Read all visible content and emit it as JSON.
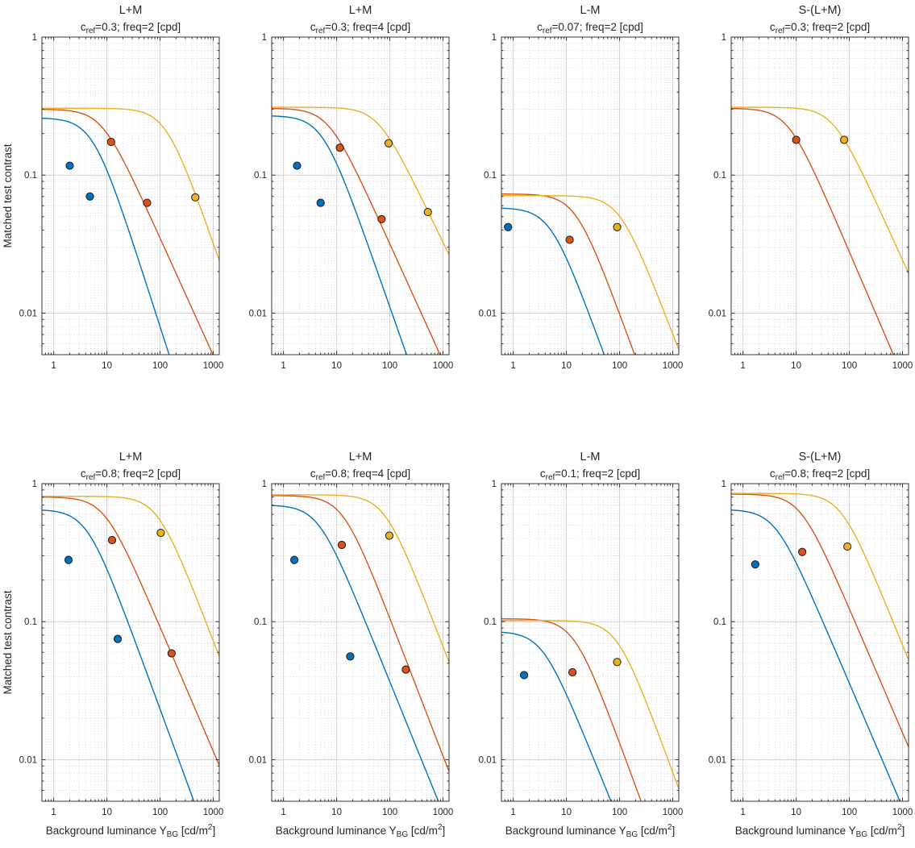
{
  "figure": {
    "background": "#ffffff",
    "ylabel": "Matched test contrast",
    "xlabel": {
      "pre": "Background luminance Y",
      "sub": "BG",
      "mid": " [cd/m",
      "sup": "2",
      "post": "]"
    },
    "x_tick_labels": [
      "1",
      "10",
      "100",
      "1000"
    ],
    "y_tick_labels": [
      "1",
      "0.1",
      "0.01"
    ],
    "x_ticks": [
      1,
      10,
      100,
      1000
    ],
    "y_ticks": [
      1,
      0.1,
      0.01
    ],
    "xlim": [
      0.6,
      1300
    ],
    "ylim": [
      0.005,
      1
    ],
    "grid": "on",
    "minor_grid": "dotted",
    "colors": {
      "blue": "#0072BD",
      "orange": "#D95319",
      "yellow": "#EDB120",
      "marker_edge": "#1a1a1a",
      "axis": "#333333",
      "grid_major": "#d2d2d2",
      "grid_minor": "#d6d6d6",
      "text": "#262626"
    }
  },
  "chart_data": [
    {
      "type": "line+scatter",
      "row": 0,
      "col": 0,
      "title": "L+M",
      "subtitle": {
        "c": "c",
        "sub": "ref",
        "rest": "=0.3; freq=2 [cpd]"
      },
      "series": [
        {
          "name": "blue",
          "color": "blue",
          "curve": {
            "c0": 0.26,
            "x0": 5.5,
            "slope": 1.2
          },
          "points": [
            [
              2.0,
              0.117
            ],
            [
              4.8,
              0.07
            ]
          ]
        },
        {
          "name": "orange",
          "color": "orange",
          "curve": {
            "c0": 0.3,
            "x0": 8,
            "slope": 0.85
          },
          "points": [
            [
              12,
              0.174
            ],
            [
              57,
              0.063
            ]
          ]
        },
        {
          "name": "yellow",
          "color": "yellow",
          "curve": {
            "c0": 0.305,
            "x0": 130,
            "slope": 1.1
          },
          "points": [
            [
              460,
              0.069
            ]
          ]
        }
      ]
    },
    {
      "type": "line+scatter",
      "row": 0,
      "col": 1,
      "title": "L+M",
      "subtitle": {
        "c": "c",
        "sub": "ref",
        "rest": "=0.3; freq=4 [cpd]"
      },
      "series": [
        {
          "name": "blue",
          "color": "blue",
          "curve": {
            "c0": 0.27,
            "x0": 5.5,
            "slope": 1.1
          },
          "points": [
            [
              1.8,
              0.117
            ],
            [
              5.0,
              0.063
            ]
          ]
        },
        {
          "name": "orange",
          "color": "orange",
          "curve": {
            "c0": 0.305,
            "x0": 7,
            "slope": 0.85
          },
          "points": [
            [
              11.5,
              0.158
            ],
            [
              70,
              0.048
            ]
          ]
        },
        {
          "name": "yellow",
          "color": "yellow",
          "curve": {
            "c0": 0.31,
            "x0": 60,
            "slope": 0.8
          },
          "points": [
            [
              95,
              0.17
            ],
            [
              520,
              0.054
            ]
          ]
        }
      ]
    },
    {
      "type": "line+scatter",
      "row": 0,
      "col": 2,
      "title": "L-M",
      "subtitle": {
        "c": "c",
        "sub": "ref",
        "rest": "=0.07; freq=2 [cpd]"
      },
      "series": [
        {
          "name": "blue",
          "color": "blue",
          "curve": {
            "c0": 0.058,
            "x0": 5,
            "slope": 1.05
          },
          "points": [
            [
              0.8,
              0.042
            ]
          ]
        },
        {
          "name": "orange",
          "color": "orange",
          "curve": {
            "c0": 0.073,
            "x0": 15,
            "slope": 1.05
          },
          "points": [
            [
              11.5,
              0.034
            ]
          ]
        },
        {
          "name": "yellow",
          "color": "yellow",
          "curve": {
            "c0": 0.071,
            "x0": 100,
            "slope": 1.0
          },
          "points": [
            [
              90,
              0.042
            ]
          ]
        }
      ]
    },
    {
      "type": "line+scatter",
      "row": 0,
      "col": 3,
      "title": "S-(L+M)",
      "subtitle": {
        "c": "c",
        "sub": "ref",
        "rest": "=0.3; freq=2 [cpd]"
      },
      "series": [
        {
          "name": "orange",
          "color": "orange",
          "curve": {
            "c0": 0.305,
            "x0": 7,
            "slope": 0.9
          },
          "points": [
            [
              10,
              0.18
            ]
          ]
        },
        {
          "name": "yellow",
          "color": "yellow",
          "curve": {
            "c0": 0.31,
            "x0": 50,
            "slope": 0.85
          },
          "points": [
            [
              80,
              0.18
            ]
          ]
        }
      ]
    },
    {
      "type": "line+scatter",
      "row": 1,
      "col": 0,
      "title": "L+M",
      "subtitle": {
        "c": "c",
        "sub": "ref",
        "rest": "=0.8; freq=2 [cpd]"
      },
      "series": [
        {
          "name": "blue",
          "color": "blue",
          "curve": {
            "c0": 0.65,
            "x0": 4.2,
            "slope": 1.05
          },
          "points": [
            [
              1.9,
              0.28
            ],
            [
              16,
              0.075
            ]
          ]
        },
        {
          "name": "orange",
          "color": "orange",
          "curve": {
            "c0": 0.8,
            "x0": 9,
            "slope": 0.9
          },
          "points": [
            [
              12.5,
              0.39
            ],
            [
              165,
              0.059
            ]
          ]
        },
        {
          "name": "yellow",
          "color": "yellow",
          "curve": {
            "c0": 0.81,
            "x0": 90,
            "slope": 1.0
          },
          "points": [
            [
              103,
              0.44
            ]
          ]
        }
      ]
    },
    {
      "type": "line+scatter",
      "row": 1,
      "col": 1,
      "title": "L+M",
      "subtitle": {
        "c": "c",
        "sub": "ref",
        "rest": "=0.8; freq=4 [cpd]"
      },
      "series": [
        {
          "name": "blue",
          "color": "blue",
          "curve": {
            "c0": 0.7,
            "x0": 4.5,
            "slope": 0.95
          },
          "points": [
            [
              1.6,
              0.28
            ],
            [
              18,
              0.056
            ]
          ]
        },
        {
          "name": "orange",
          "color": "orange",
          "curve": {
            "c0": 0.82,
            "x0": 13,
            "slope": 1.0
          },
          "points": [
            [
              12.5,
              0.36
            ],
            [
              200,
              0.045
            ]
          ]
        },
        {
          "name": "yellow",
          "color": "yellow",
          "curve": {
            "c0": 0.83,
            "x0": 80,
            "slope": 1.0
          },
          "points": [
            [
              98,
              0.42
            ]
          ]
        }
      ]
    },
    {
      "type": "line+scatter",
      "row": 1,
      "col": 2,
      "title": "L-M",
      "subtitle": {
        "c": "c",
        "sub": "ref",
        "rest": "=0.1; freq=2 [cpd]"
      },
      "series": [
        {
          "name": "blue",
          "color": "blue",
          "curve": {
            "c0": 0.085,
            "x0": 3.5,
            "slope": 0.95
          },
          "points": [
            [
              1.6,
              0.041
            ]
          ]
        },
        {
          "name": "orange",
          "color": "orange",
          "curve": {
            "c0": 0.105,
            "x0": 14,
            "slope": 1.05
          },
          "points": [
            [
              13,
              0.043
            ]
          ]
        },
        {
          "name": "yellow",
          "color": "yellow",
          "curve": {
            "c0": 0.102,
            "x0": 90,
            "slope": 1.05
          },
          "points": [
            [
              90,
              0.051
            ]
          ]
        }
      ]
    },
    {
      "type": "line+scatter",
      "row": 1,
      "col": 3,
      "title": "S-(L+M)",
      "subtitle": {
        "c": "c",
        "sub": "ref",
        "rest": "=0.8; freq=2 [cpd]"
      },
      "series": [
        {
          "name": "blue",
          "color": "blue",
          "curve": {
            "c0": 0.65,
            "x0": 4,
            "slope": 0.9
          },
          "points": [
            [
              1.7,
              0.26
            ]
          ]
        },
        {
          "name": "orange",
          "color": "orange",
          "curve": {
            "c0": 0.84,
            "x0": 12,
            "slope": 0.9
          },
          "points": [
            [
              13,
              0.32
            ]
          ]
        },
        {
          "name": "yellow",
          "color": "yellow",
          "curve": {
            "c0": 0.85,
            "x0": 70,
            "slope": 0.95
          },
          "points": [
            [
              92,
              0.35
            ]
          ]
        }
      ]
    }
  ],
  "layout": {
    "col_left": [
      52,
      337,
      622,
      907
    ],
    "row_top": [
      46,
      600
    ],
    "axes_width": 220,
    "axes_height": 394
  }
}
